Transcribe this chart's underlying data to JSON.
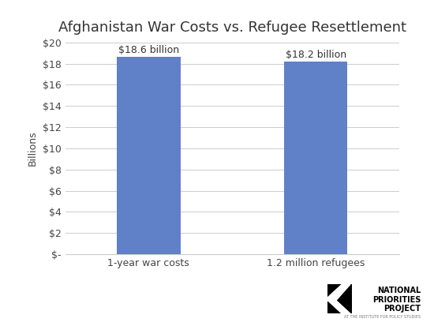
{
  "title": "Afghanistan War Costs vs. Refugee Resettlement",
  "categories": [
    "1-year war costs",
    "1.2 million refugees"
  ],
  "values": [
    18.6,
    18.2
  ],
  "labels": [
    "$18.6 billion",
    "$18.2 billion"
  ],
  "bar_color": "#6080c8",
  "ylabel": "Billions",
  "ylim": [
    0,
    20
  ],
  "yticks": [
    0,
    2,
    4,
    6,
    8,
    10,
    12,
    14,
    16,
    18,
    20
  ],
  "ytick_labels": [
    "$-",
    "$2",
    "$4",
    "$6",
    "$8",
    "$10",
    "$12",
    "$14",
    "$16",
    "$18",
    "$20"
  ],
  "title_fontsize": 13,
  "title_color": "#333333",
  "label_fontsize": 9,
  "tick_fontsize": 9,
  "ylabel_fontsize": 9,
  "background_color": "#ffffff",
  "grid_color": "#cccccc",
  "bar_width": 0.38,
  "logo_text_main": "NATIONAL\nPRIORITIES\nPROJECT",
  "logo_text_sub": "AT THE INSTITUTE FOR POLICY STUDIES"
}
